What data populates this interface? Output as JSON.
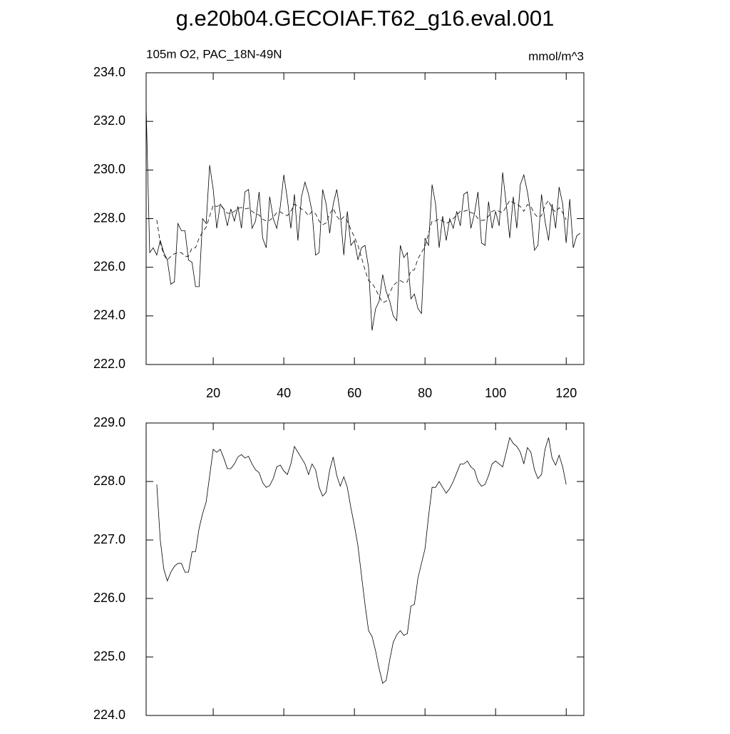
{
  "chart_data": [
    {
      "type": "line",
      "title": "g.e20b04.GECOIAF.T62_g16.eval.001",
      "subtitle_left": "105m O2, PAC_18N-49N",
      "subtitle_right": "mmol/m^3",
      "xlim": [
        1,
        125
      ],
      "xticks": [
        20,
        40,
        60,
        80,
        100,
        120
      ],
      "show_xtick_labels": true,
      "ylim": [
        222,
        234
      ],
      "yticks": [
        {
          "value": 222,
          "label": "222.0"
        },
        {
          "value": 224,
          "label": "224.0"
        },
        {
          "value": 226,
          "label": "226.0"
        },
        {
          "value": 228,
          "label": "228.0"
        },
        {
          "value": 230,
          "label": "230.0"
        },
        {
          "value": 232,
          "label": "232.0"
        },
        {
          "value": 234,
          "label": "234.0"
        }
      ],
      "series": [
        {
          "color": "#000000",
          "dashed": false,
          "x": [
            1,
            2,
            3,
            4,
            5,
            6,
            7,
            8,
            9,
            10,
            11,
            12,
            13,
            14,
            15,
            16,
            17,
            18,
            19,
            20,
            21,
            22,
            23,
            24,
            25,
            26,
            27,
            28,
            29,
            30,
            31,
            32,
            33,
            34,
            35,
            36,
            37,
            38,
            39,
            40,
            41,
            42,
            43,
            44,
            45,
            46,
            47,
            48,
            49,
            50,
            51,
            52,
            53,
            54,
            55,
            56,
            57,
            58,
            59,
            60,
            61,
            62,
            63,
            64,
            65,
            66,
            67,
            68,
            69,
            70,
            71,
            72,
            73,
            74,
            75,
            76,
            77,
            78,
            79,
            80,
            81,
            82,
            83,
            84,
            85,
            86,
            87,
            88,
            89,
            90,
            91,
            92,
            93,
            94,
            95,
            96,
            97,
            98,
            99,
            100,
            101,
            102,
            103,
            104,
            105,
            106,
            107,
            108,
            109,
            110,
            111,
            112,
            113,
            114,
            115,
            116,
            117,
            118,
            119,
            120,
            121,
            122,
            123,
            124
          ],
          "values": [
            232.6,
            226.6,
            226.8,
            226.5,
            227.1,
            226.6,
            226.3,
            225.3,
            225.4,
            227.8,
            227.5,
            227.5,
            226.3,
            226.2,
            225.2,
            225.2,
            228.0,
            227.8,
            230.2,
            229.2,
            227.6,
            228.6,
            228.4,
            227.7,
            228.4,
            227.9,
            228.5,
            227.6,
            229.1,
            229.2,
            227.6,
            227.9,
            229.1,
            227.2,
            226.8,
            228.9,
            228.0,
            227.6,
            228.5,
            229.8,
            228.8,
            227.6,
            229.0,
            227.1,
            228.9,
            229.5,
            229.0,
            228.3,
            226.5,
            226.6,
            229.2,
            228.6,
            227.4,
            228.6,
            229.2,
            228.2,
            226.5,
            228.3,
            226.9,
            227.1,
            226.3,
            226.8,
            226.9,
            226.0,
            223.4,
            224.3,
            224.6,
            225.7,
            225.0,
            224.6,
            224.0,
            223.8,
            226.9,
            226.4,
            226.6,
            224.7,
            224.9,
            224.3,
            224.1,
            227.2,
            226.9,
            229.4,
            228.6,
            226.8,
            228.1,
            227.1,
            228.0,
            227.6,
            228.3,
            227.7,
            229.0,
            229.1,
            227.6,
            228.2,
            229.1,
            227.0,
            226.9,
            228.7,
            227.6,
            228.3,
            227.7,
            229.9,
            228.6,
            227.2,
            228.9,
            227.6,
            229.4,
            229.8,
            229.1,
            228.2,
            226.7,
            226.9,
            229.0,
            227.9,
            227.1,
            228.6,
            227.6,
            229.3,
            228.6,
            227.0,
            228.8,
            226.8,
            227.3,
            227.4
          ]
        },
        {
          "color": "#000000",
          "dashed": true,
          "x": [
            4,
            5,
            6,
            7,
            8,
            9,
            10,
            11,
            12,
            13,
            14,
            15,
            16,
            17,
            18,
            19,
            20,
            21,
            22,
            23,
            24,
            25,
            26,
            27,
            28,
            29,
            30,
            31,
            32,
            33,
            34,
            35,
            36,
            37,
            38,
            39,
            40,
            41,
            42,
            43,
            44,
            45,
            46,
            47,
            48,
            49,
            50,
            51,
            52,
            53,
            54,
            55,
            56,
            57,
            58,
            59,
            60,
            61,
            62,
            63,
            64,
            65,
            66,
            67,
            68,
            69,
            70,
            71,
            72,
            73,
            74,
            75,
            76,
            77,
            78,
            79,
            80,
            81,
            82,
            83,
            84,
            85,
            86,
            87,
            88,
            89,
            90,
            91,
            92,
            93,
            94,
            95,
            96,
            97,
            98,
            99,
            100,
            101,
            102,
            103,
            104,
            105,
            106,
            107,
            108,
            109,
            110,
            111,
            112,
            113,
            114,
            115,
            116,
            117,
            118,
            119,
            120
          ],
          "values": [
            227.95,
            227.0,
            226.5,
            226.3,
            226.45,
            226.55,
            226.6,
            226.6,
            226.45,
            226.45,
            226.8,
            226.8,
            227.2,
            227.45,
            227.65,
            228.1,
            228.55,
            228.5,
            228.55,
            228.4,
            228.22,
            228.22,
            228.3,
            228.42,
            228.46,
            228.4,
            228.43,
            228.3,
            228.2,
            228.15,
            227.98,
            227.9,
            227.93,
            228.05,
            228.25,
            228.28,
            228.18,
            228.12,
            228.3,
            228.6,
            228.5,
            228.4,
            228.3,
            228.12,
            228.3,
            228.2,
            227.9,
            227.75,
            227.82,
            228.2,
            228.42,
            228.1,
            227.92,
            228.08,
            227.9,
            227.55,
            227.25,
            226.9,
            226.4,
            225.9,
            225.45,
            225.35,
            225.1,
            224.8,
            224.55,
            224.6,
            224.95,
            225.25,
            225.38,
            225.45,
            225.37,
            225.4,
            225.87,
            225.9,
            226.35,
            226.6,
            226.85,
            227.4,
            227.9,
            227.9,
            228.0,
            227.9,
            227.8,
            227.88,
            228.0,
            228.15,
            228.3,
            228.3,
            228.35,
            228.25,
            228.2,
            228.0,
            227.92,
            227.95,
            228.1,
            228.3,
            228.35,
            228.3,
            228.25,
            228.5,
            228.75,
            228.65,
            228.6,
            228.5,
            228.3,
            228.58,
            228.5,
            228.2,
            228.05,
            228.12,
            228.55,
            228.75,
            228.4,
            228.28,
            228.45,
            228.25,
            227.95
          ]
        }
      ]
    },
    {
      "type": "line",
      "xlim": [
        1,
        125
      ],
      "xticks": [
        20,
        40,
        60,
        80,
        100,
        120
      ],
      "show_xtick_labels": false,
      "ylim": [
        224,
        229
      ],
      "yticks": [
        {
          "value": 224,
          "label": "224.0"
        },
        {
          "value": 225,
          "label": "225.0"
        },
        {
          "value": 226,
          "label": "226.0"
        },
        {
          "value": 227,
          "label": "227.0"
        },
        {
          "value": 228,
          "label": "228.0"
        },
        {
          "value": 229,
          "label": "229.0"
        }
      ],
      "series": [
        {
          "color": "#000000",
          "dashed": false,
          "x": [
            4,
            5,
            6,
            7,
            8,
            9,
            10,
            11,
            12,
            13,
            14,
            15,
            16,
            17,
            18,
            19,
            20,
            21,
            22,
            23,
            24,
            25,
            26,
            27,
            28,
            29,
            30,
            31,
            32,
            33,
            34,
            35,
            36,
            37,
            38,
            39,
            40,
            41,
            42,
            43,
            44,
            45,
            46,
            47,
            48,
            49,
            50,
            51,
            52,
            53,
            54,
            55,
            56,
            57,
            58,
            59,
            60,
            61,
            62,
            63,
            64,
            65,
            66,
            67,
            68,
            69,
            70,
            71,
            72,
            73,
            74,
            75,
            76,
            77,
            78,
            79,
            80,
            81,
            82,
            83,
            84,
            85,
            86,
            87,
            88,
            89,
            90,
            91,
            92,
            93,
            94,
            95,
            96,
            97,
            98,
            99,
            100,
            101,
            102,
            103,
            104,
            105,
            106,
            107,
            108,
            109,
            110,
            111,
            112,
            113,
            114,
            115,
            116,
            117,
            118,
            119,
            120
          ],
          "values": [
            227.95,
            227.0,
            226.5,
            226.3,
            226.45,
            226.55,
            226.6,
            226.6,
            226.45,
            226.45,
            226.8,
            226.8,
            227.2,
            227.45,
            227.65,
            228.1,
            228.55,
            228.5,
            228.55,
            228.4,
            228.22,
            228.22,
            228.3,
            228.42,
            228.46,
            228.4,
            228.43,
            228.3,
            228.2,
            228.15,
            227.98,
            227.9,
            227.93,
            228.05,
            228.25,
            228.28,
            228.18,
            228.12,
            228.3,
            228.6,
            228.5,
            228.4,
            228.3,
            228.12,
            228.3,
            228.2,
            227.9,
            227.75,
            227.82,
            228.2,
            228.42,
            228.1,
            227.92,
            228.08,
            227.9,
            227.55,
            227.25,
            226.9,
            226.4,
            225.9,
            225.45,
            225.35,
            225.1,
            224.8,
            224.55,
            224.6,
            224.95,
            225.25,
            225.38,
            225.45,
            225.37,
            225.4,
            225.87,
            225.9,
            226.35,
            226.6,
            226.85,
            227.4,
            227.9,
            227.9,
            228.0,
            227.9,
            227.8,
            227.88,
            228.0,
            228.15,
            228.3,
            228.3,
            228.35,
            228.25,
            228.2,
            228.0,
            227.92,
            227.95,
            228.1,
            228.3,
            228.35,
            228.3,
            228.25,
            228.5,
            228.75,
            228.65,
            228.6,
            228.5,
            228.3,
            228.58,
            228.5,
            228.2,
            228.05,
            228.12,
            228.55,
            228.75,
            228.4,
            228.28,
            228.45,
            228.25,
            227.95
          ]
        }
      ]
    }
  ]
}
